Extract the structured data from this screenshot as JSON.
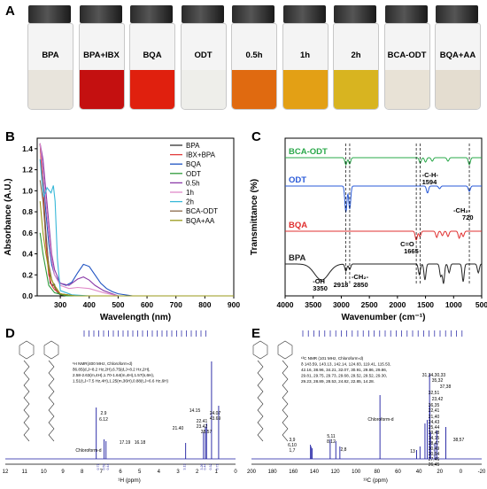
{
  "panels": {
    "A": "A",
    "B": "B",
    "C": "C",
    "D": "D",
    "E": "E"
  },
  "vials": [
    {
      "label": "BPA",
      "color": "#e8e4dc"
    },
    {
      "label": "BPA+IBX",
      "color": "#c41010"
    },
    {
      "label": "BQA",
      "color": "#e0200e"
    },
    {
      "label": "ODT",
      "color": "#eeeeea"
    },
    {
      "label": "0.5h",
      "color": "#e06a10"
    },
    {
      "label": "1h",
      "color": "#e3a015"
    },
    {
      "label": "2h",
      "color": "#d8b420"
    },
    {
      "label": "BCA-ODT",
      "color": "#e8e2d6"
    },
    {
      "label": "BQA+AA",
      "color": "#e4ddd0"
    }
  ],
  "chart_data": [
    {
      "type": "line",
      "panel": "B",
      "xlabel": "Wavelength (nm)",
      "ylabel": "Absorbance (A.U.)",
      "xlim": [
        220,
        900
      ],
      "ylim": [
        0,
        1.5
      ],
      "x_ticks": [
        "300",
        "400",
        "500",
        "600",
        "700",
        "800",
        "900"
      ],
      "y_ticks": [
        "0.0",
        "0.2",
        "0.4",
        "0.6",
        "0.8",
        "1.0",
        "1.2",
        "1.4"
      ],
      "legend_placement": "top-right",
      "series": [
        {
          "name": "BPA",
          "color": "#333333",
          "x": [
            230,
            250,
            265,
            275,
            280,
            285,
            300,
            350,
            900
          ],
          "y": [
            1.45,
            0.6,
            0.12,
            0.1,
            0.11,
            0.05,
            0.01,
            0.0,
            0.0
          ]
        },
        {
          "name": "IBX+BPA",
          "color": "#e23b3b",
          "x": [
            230,
            240,
            250,
            260,
            270,
            280,
            300,
            350,
            900
          ],
          "y": [
            1.45,
            1.0,
            0.5,
            0.2,
            0.1,
            0.06,
            0.02,
            0.0,
            0.0
          ]
        },
        {
          "name": "BQA",
          "color": "#1f53c2",
          "x": [
            230,
            240,
            250,
            260,
            270,
            280,
            300,
            320,
            340,
            360,
            380,
            400,
            420,
            440,
            460,
            480,
            500,
            550
          ],
          "y": [
            1.45,
            1.2,
            0.8,
            0.5,
            0.3,
            0.2,
            0.12,
            0.1,
            0.13,
            0.22,
            0.3,
            0.28,
            0.2,
            0.12,
            0.07,
            0.04,
            0.02,
            0.0
          ]
        },
        {
          "name": "ODT",
          "color": "#2e9a3a",
          "x": [
            230,
            240,
            250,
            260,
            280,
            320,
            900
          ],
          "y": [
            0.6,
            0.4,
            0.25,
            0.1,
            0.03,
            0.0,
            0.0
          ]
        },
        {
          "name": "0.5h",
          "color": "#8a3aa8",
          "x": [
            230,
            240,
            250,
            260,
            270,
            280,
            300,
            330,
            360,
            380,
            400,
            420,
            450,
            500
          ],
          "y": [
            1.45,
            1.3,
            1.0,
            0.7,
            0.4,
            0.25,
            0.12,
            0.1,
            0.16,
            0.18,
            0.15,
            0.1,
            0.05,
            0.0
          ]
        },
        {
          "name": "1h",
          "color": "#e08ac8",
          "x": [
            230,
            240,
            250,
            260,
            270,
            280,
            300,
            330,
            360,
            400,
            450,
            500
          ],
          "y": [
            1.45,
            1.2,
            0.9,
            0.6,
            0.35,
            0.2,
            0.1,
            0.07,
            0.08,
            0.07,
            0.03,
            0.0
          ]
        },
        {
          "name": "2h",
          "color": "#38b8d8",
          "x": [
            230,
            236,
            242,
            248,
            254,
            262,
            268,
            276,
            282,
            290,
            300,
            340,
            400
          ],
          "y": [
            1.3,
            1.1,
            0.95,
            0.98,
            1.03,
            1.0,
            0.98,
            1.05,
            0.9,
            0.35,
            0.05,
            0.01,
            0.0
          ]
        },
        {
          "name": "BCA-ODT",
          "color": "#8a6a4a",
          "x": [
            230,
            240,
            250,
            260,
            270,
            280,
            300,
            350,
            900
          ],
          "y": [
            1.1,
            0.9,
            0.55,
            0.3,
            0.16,
            0.08,
            0.02,
            0.0,
            0.0
          ]
        },
        {
          "name": "BQA+AA",
          "color": "#9a9a1a",
          "x": [
            230,
            240,
            250,
            260,
            270,
            280,
            290,
            300,
            350,
            900
          ],
          "y": [
            0.9,
            0.6,
            0.4,
            0.25,
            0.15,
            0.1,
            0.06,
            0.02,
            0.0,
            0.0
          ]
        }
      ]
    },
    {
      "type": "line",
      "panel": "C",
      "xlabel": "Wavenumber (cm⁻¹)",
      "ylabel": "Transmittance (%)",
      "xlim": [
        4000,
        500
      ],
      "x_ticks": [
        "4000",
        "3500",
        "3000",
        "2500",
        "2000",
        "1500",
        "1000",
        "500"
      ],
      "series": [
        {
          "name": "BCA-ODT",
          "color": "#2aa84a"
        },
        {
          "name": "ODT",
          "color": "#2a5ad8"
        },
        {
          "name": "BQA",
          "color": "#e03030"
        },
        {
          "name": "BPA",
          "color": "#222222"
        }
      ],
      "annotations": [
        {
          "text": "-C-H-"
        },
        {
          "text": "1594"
        },
        {
          "text": "-CH₂-"
        },
        {
          "text": "720"
        },
        {
          "text": "C=O"
        },
        {
          "text": "1665"
        },
        {
          "text": "-OH"
        },
        {
          "text": "3350"
        },
        {
          "text": "-CH₂-"
        },
        {
          "text": "2918"
        },
        {
          "text": "2850"
        }
      ]
    },
    {
      "type": "line",
      "panel": "D",
      "xlabel": "¹H (ppm)",
      "x_ticks": [
        "12",
        "11",
        "10",
        "9",
        "8",
        "7",
        "6",
        "5",
        "4",
        "3",
        "2",
        "1",
        "0"
      ],
      "nmr_text": [
        "¹H NMR(400 MHz, Chloroform-d)",
        "δ6.85(d,J=8.2 Hz,2H),6.75(d,J=8.2 Hz,2H),",
        "2.58-2.63(m,4H),1.70-1.64(m,4H),1.57(s,6H),",
        "1.51(t,J=7.5 Hz,4H),1.25(m,36H),0.88(t,J=6.6 Hz,6H)"
      ],
      "peak_labels": [
        "2.9",
        "6.12",
        "Chloroform-d",
        "17.19",
        "16.18",
        "21.40",
        "14.15",
        "22.41",
        "23.42",
        "38.57",
        "24.07",
        "43.69"
      ],
      "integrals": [
        "0.71",
        "0.53",
        "0.44",
        "3.13",
        "3.26",
        "0.44",
        "0.32",
        "0.71"
      ]
    },
    {
      "type": "line",
      "panel": "E",
      "xlabel": "¹³C (ppm)",
      "x_ticks": [
        "200",
        "190",
        "180",
        "170",
        "160",
        "150",
        "140",
        "130",
        "120",
        "110",
        "100",
        "90",
        "80",
        "70",
        "60",
        "50",
        "40",
        "30",
        "20",
        "10",
        "0",
        "-10",
        "-20"
      ],
      "nmr_text": [
        "¹³C NMR (101 MHz, Chloroform-d)",
        "δ 143.59, 143.13, 142.14, 124.83, 119.41, 115.53,",
        "42.16, 38.96, 34.21, 32.07, 30.91, 29.86, 29.86,",
        "29.81, 29.75, 29.73, 29.68, 29.52, 29.52, 29.30,",
        "29.23, 28.89, 28.53, 24.82, 22.85, 14.28."
      ],
      "peak_labels": [
        "3,9",
        "6,10",
        "1,7",
        "5,11",
        "8,12",
        "2,8",
        "Chloroform-d",
        "31,34,30,33",
        "35,32",
        "37,38",
        "32,51",
        "23,42",
        "36,35",
        "22,41",
        "21,40",
        "24,43",
        "25,44",
        "29,48",
        "14,15",
        "28,47",
        "30,49",
        "20,54",
        "27,46",
        "26,45",
        "38,57",
        "13"
      ]
    }
  ]
}
